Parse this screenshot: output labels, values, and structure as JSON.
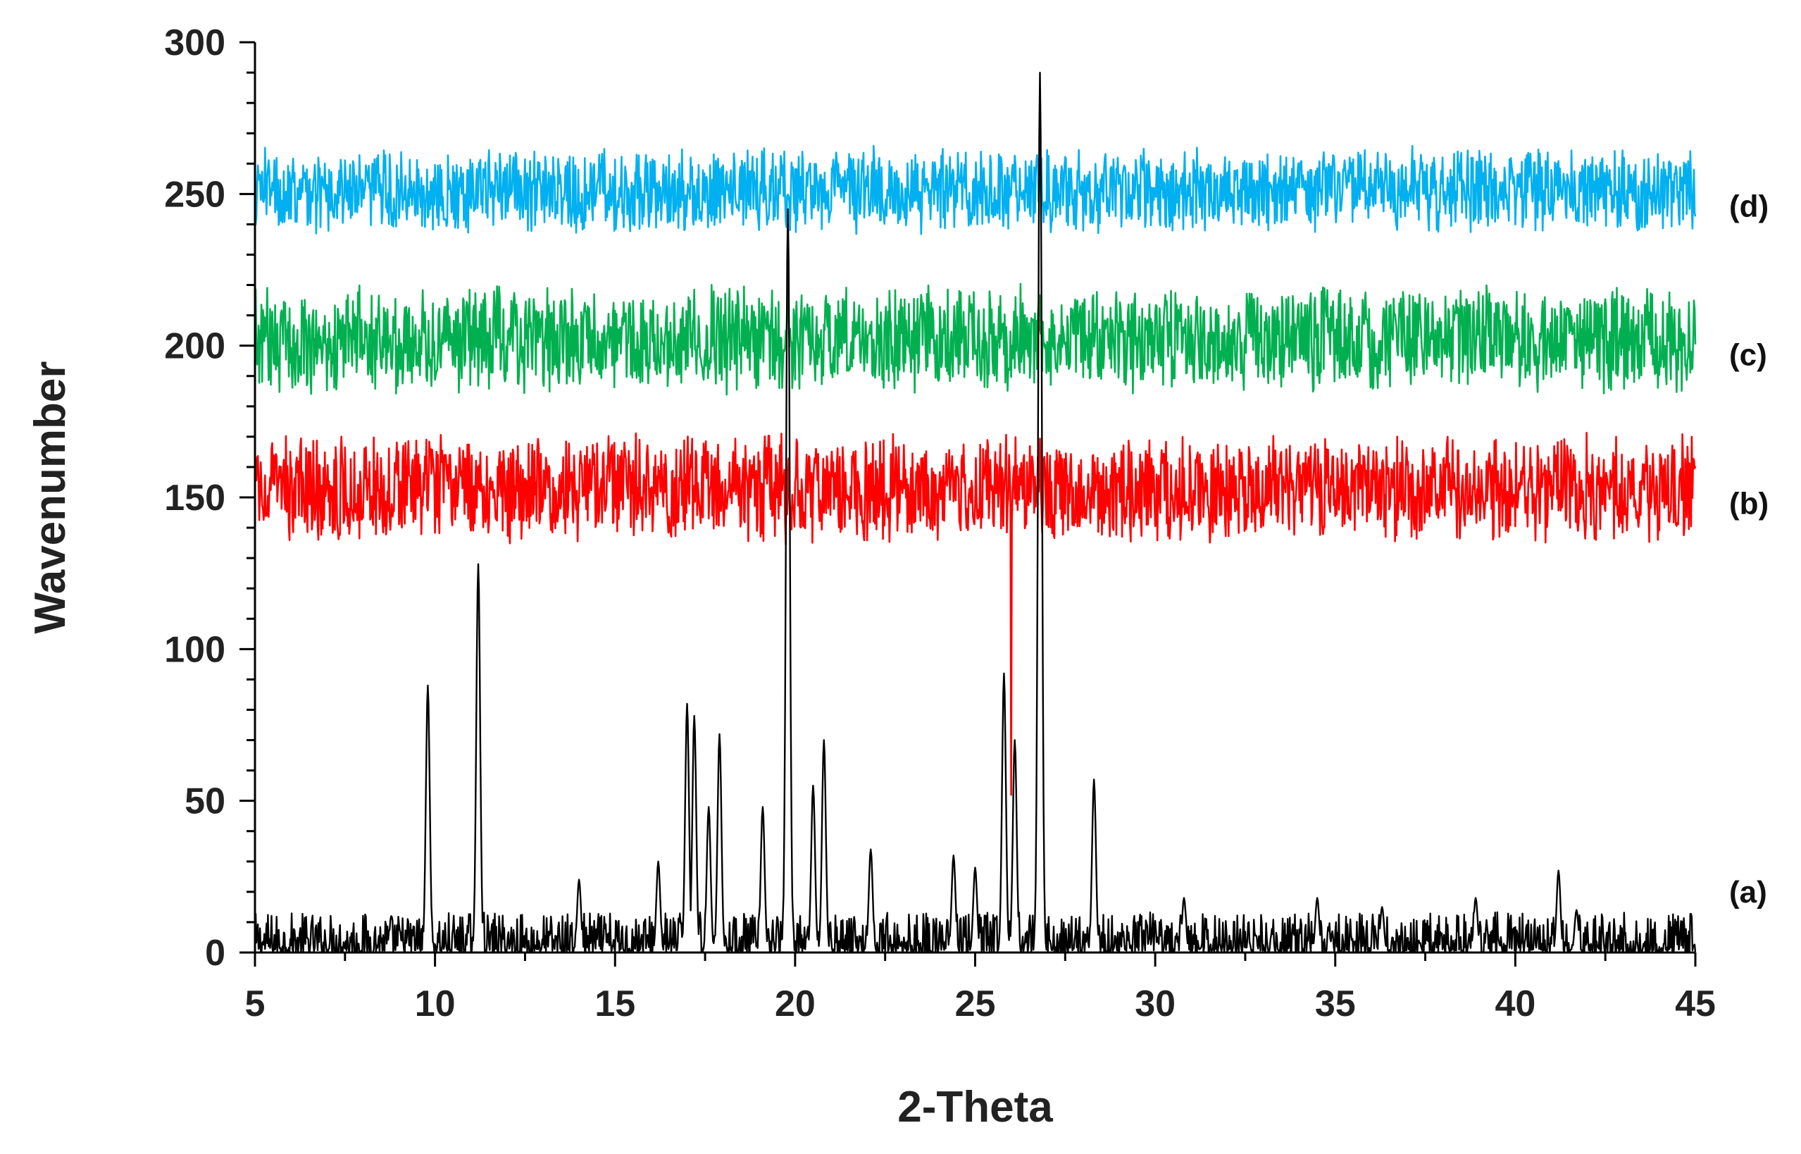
{
  "chart_data": {
    "type": "line",
    "title": "",
    "xlabel": "2-Theta",
    "ylabel": "Wavenumber",
    "xlim": [
      5,
      45
    ],
    "ylim": [
      0,
      300
    ],
    "x_ticks": [
      "5",
      "10",
      "15",
      "20",
      "25",
      "30",
      "35",
      "40",
      "45"
    ],
    "y_ticks": [
      "0",
      "50",
      "100",
      "150",
      "200",
      "250",
      "300"
    ],
    "grid": false,
    "legend": "none",
    "series": [
      {
        "label": "(a)",
        "color": "#000000",
        "baseline": 0,
        "noise": 7,
        "peaks": [
          {
            "x": 9.8,
            "y": 88
          },
          {
            "x": 11.2,
            "y": 128
          },
          {
            "x": 14.0,
            "y": 24
          },
          {
            "x": 16.2,
            "y": 30
          },
          {
            "x": 17.0,
            "y": 82
          },
          {
            "x": 17.2,
            "y": 78
          },
          {
            "x": 17.6,
            "y": 48
          },
          {
            "x": 17.9,
            "y": 72
          },
          {
            "x": 19.1,
            "y": 48
          },
          {
            "x": 19.8,
            "y": 245
          },
          {
            "x": 20.5,
            "y": 55
          },
          {
            "x": 20.8,
            "y": 70
          },
          {
            "x": 22.1,
            "y": 34
          },
          {
            "x": 24.4,
            "y": 32
          },
          {
            "x": 25.0,
            "y": 28
          },
          {
            "x": 25.8,
            "y": 92
          },
          {
            "x": 26.1,
            "y": 70
          },
          {
            "x": 26.8,
            "y": 290
          },
          {
            "x": 28.3,
            "y": 57
          },
          {
            "x": 30.8,
            "y": 18
          },
          {
            "x": 34.5,
            "y": 18
          },
          {
            "x": 36.3,
            "y": 15
          },
          {
            "x": 38.9,
            "y": 18
          },
          {
            "x": 41.2,
            "y": 27
          },
          {
            "x": 41.7,
            "y": 14
          }
        ]
      },
      {
        "label": "(b)",
        "color": "#ff0000",
        "baseline": 153,
        "noise": 15,
        "dip": {
          "x": 26.0,
          "y": 52
        }
      },
      {
        "label": "(c)",
        "color": "#00b050",
        "baseline": 202,
        "noise": 15
      },
      {
        "label": "(d)",
        "color": "#00b0f0",
        "baseline": 251,
        "noise": 12
      }
    ]
  }
}
